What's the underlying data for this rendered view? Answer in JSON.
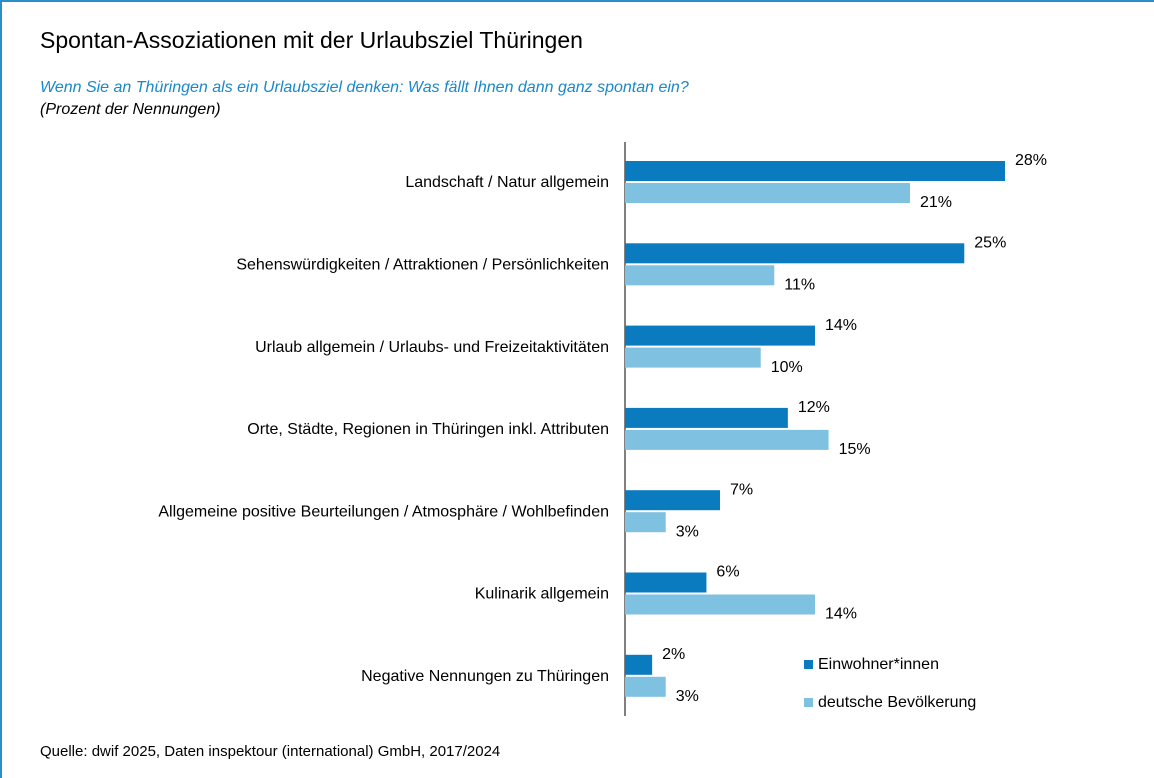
{
  "chart_data": {
    "type": "hbar",
    "title": "Spontan-Assoziationen mit der Urlaubsziel Thüringen",
    "subtitle": "Wenn Sie an Thüringen als ein Urlaubsziel denken: Was fällt Ihnen dann ganz spontan ein?",
    "note": "(Prozent der Nennungen)",
    "source": "Quelle: dwif 2025, Daten inspektour (international) GmbH, 2017/2024",
    "categories": [
      "Landschaft / Natur allgemein",
      "Sehenswürdigkeiten / Attraktionen / Persönlichkeiten",
      "Urlaub allgemein / Urlaubs- und Freizeitaktivitäten",
      "Orte, Städte, Regionen in Thüringen inkl. Attributen",
      "Allgemeine positive Beurteilungen / Atmosphäre / Wohlbefinden",
      "Kulinarik allgemein",
      "Negative Nennungen zu Thüringen"
    ],
    "series": [
      {
        "name": "Einwohner*innen",
        "color": "#0a7bbf",
        "values": [
          28,
          25,
          14,
          12,
          7,
          6,
          2
        ],
        "value_labels": [
          "28%",
          "25%",
          "14%",
          "12%",
          "7%",
          "6%",
          "2%"
        ]
      },
      {
        "name": "deutsche Bevölkerung",
        "color": "#7fc1e0",
        "values": [
          21,
          11,
          10,
          15,
          3,
          14,
          3
        ],
        "value_labels": [
          "21%",
          "11%",
          "10%",
          "15%",
          "3%",
          "14%",
          "3%"
        ]
      }
    ],
    "legend": "lower right"
  }
}
